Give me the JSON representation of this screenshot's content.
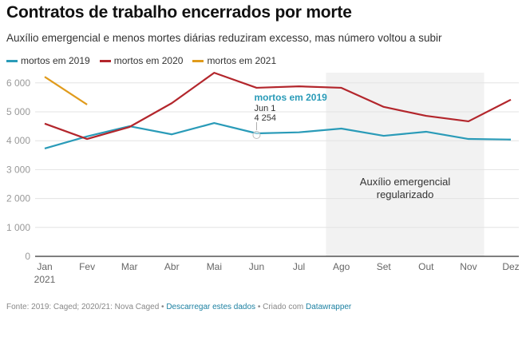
{
  "header": {
    "title": "Contratos de trabalho encerrados por morte",
    "subtitle": "Auxílio emergencial e menos mortes diárias reduziram excesso, mas número voltou a subir"
  },
  "footer": {
    "source": "Fonte: 2019: Caged; 2020/21: Nova Caged",
    "sep1": " • ",
    "download_link": "Descarregar estes dados",
    "sep2": " • Criado com ",
    "datawrapper_link": "Datawrapper"
  },
  "chart_data": {
    "type": "line",
    "title": "Contratos de trabalho encerrados por morte",
    "subtitle": "Auxílio emergencial e menos mortes diárias reduziram excesso, mas número voltou a subir",
    "xlabel": "",
    "ylabel": "",
    "categories": [
      "Jan",
      "Fev",
      "Mar",
      "Abr",
      "Mai",
      "Jun",
      "Jul",
      "Ago",
      "Set",
      "Out",
      "Nov",
      "Dez"
    ],
    "first_tick_sublabel": "2021",
    "ylim": [
      0,
      6300
    ],
    "yticks": [
      0,
      1000,
      2000,
      3000,
      4000,
      5000,
      6000
    ],
    "ytick_labels": [
      "0",
      "1 000",
      "2 000",
      "3 000",
      "4 000",
      "5 000",
      "6 000"
    ],
    "grid": true,
    "legend_position": "top-left",
    "series": [
      {
        "name": "mortos em 2019",
        "color": "#2a9bb8",
        "values": [
          3730,
          4150,
          4500,
          4220,
          4610,
          4254,
          4290,
          4420,
          4170,
          4310,
          4060,
          4040
        ]
      },
      {
        "name": "mortos em 2020",
        "color": "#b3262c",
        "values": [
          4590,
          4060,
          4475,
          5300,
          6350,
          5830,
          5880,
          5830,
          5170,
          4860,
          4670,
          5420
        ]
      },
      {
        "name": "mortos em 2021",
        "color": "#e09b1c",
        "values": [
          6210,
          5250
        ]
      }
    ],
    "highlight_range": {
      "from": "Ago",
      "to": "Nov",
      "label_line1": "Auxílio emergencial",
      "label_line2": "regularizado",
      "color": "#f2f2f2"
    },
    "tooltip": {
      "series": "mortos em 2019",
      "title": "mortos em 2019",
      "date": "Jun 1",
      "value": "4 254",
      "index": 5
    }
  }
}
